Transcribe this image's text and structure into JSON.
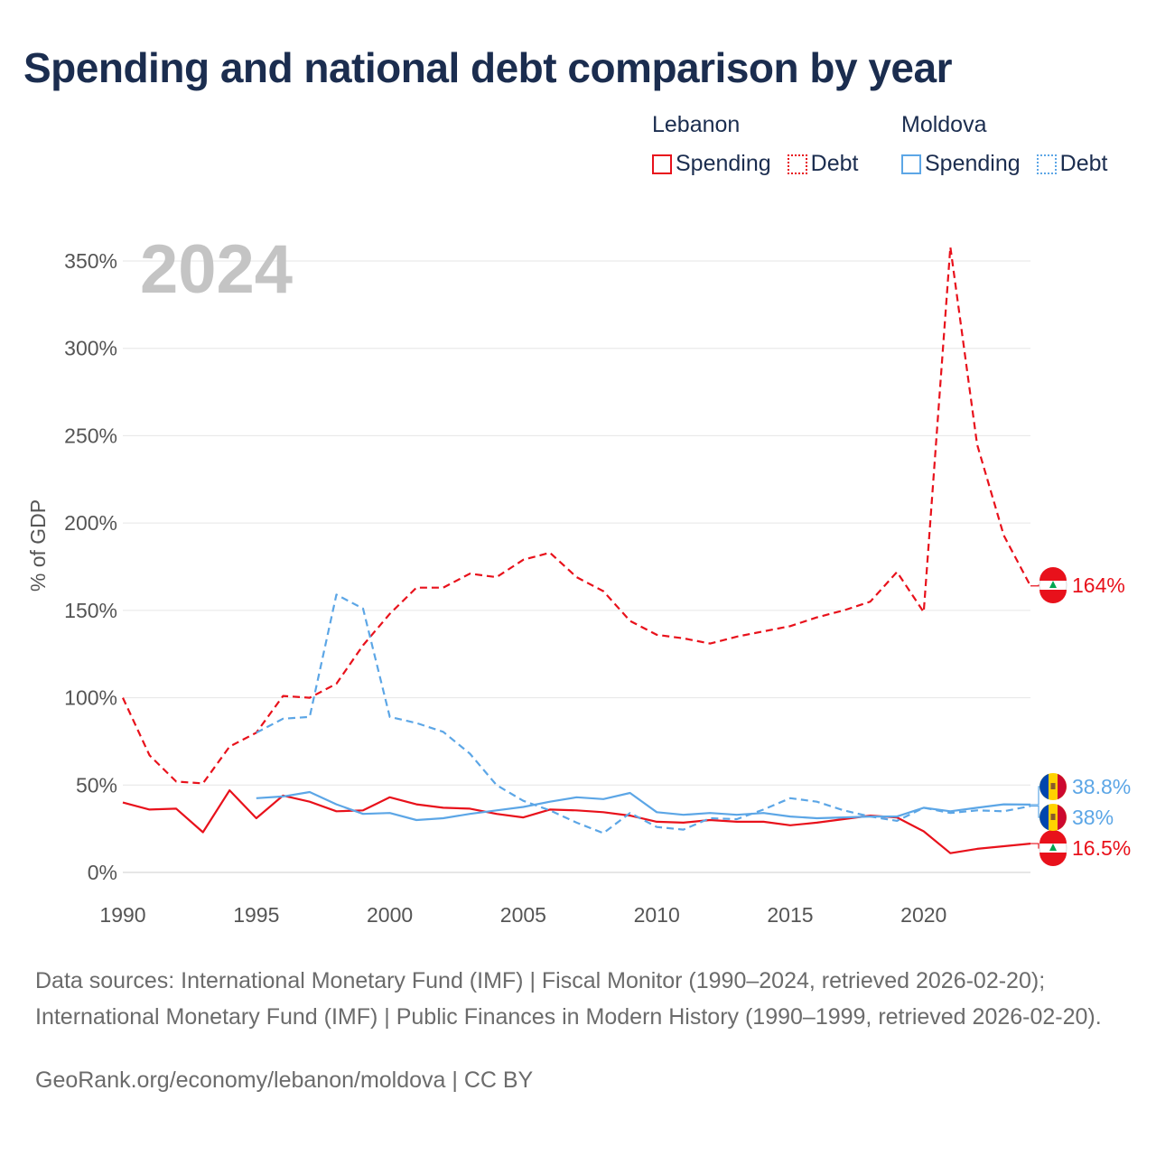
{
  "title": "Spending and national debt comparison by year",
  "legend": {
    "groups": [
      {
        "country": "Lebanon",
        "spending_label": "Spending",
        "debt_label": "Debt",
        "color": "#e8111b"
      },
      {
        "country": "Moldova",
        "spending_label": "Spending",
        "debt_label": "Debt",
        "color": "#5ca6e6"
      }
    ]
  },
  "year_watermark": "2024",
  "footer": {
    "sources": "Data sources: International Monetary Fund (IMF) | Fiscal Monitor (1990–2024, retrieved 2026-02-20); International Monetary Fund (IMF) | Public Finances in Modern History (1990–1999, retrieved 2026-02-20).",
    "credit": "GeoRank.org/economy/lebanon/moldova | CC BY"
  },
  "chart_data": {
    "type": "line",
    "title": "Spending and national debt comparison by year",
    "xlabel": "",
    "ylabel": "% of GDP",
    "xlim": [
      1990,
      2024
    ],
    "ylim": [
      0,
      360
    ],
    "x_ticks": [
      1990,
      1995,
      2000,
      2005,
      2010,
      2015,
      2020
    ],
    "y_ticks": [
      0,
      50,
      100,
      150,
      200,
      250,
      300,
      350
    ],
    "y_tick_labels": [
      "0%",
      "50%",
      "100%",
      "150%",
      "200%",
      "250%",
      "300%",
      "350%"
    ],
    "grid": true,
    "series": [
      {
        "name": "Lebanon Debt",
        "country": "Lebanon",
        "metric": "Debt",
        "style": "dashed",
        "color": "#e8111b",
        "x": [
          1990,
          1991,
          1992,
          1993,
          1994,
          1995,
          1996,
          1997,
          1998,
          1999,
          2000,
          2001,
          2002,
          2003,
          2004,
          2005,
          2006,
          2007,
          2008,
          2009,
          2010,
          2011,
          2012,
          2013,
          2014,
          2015,
          2016,
          2017,
          2018,
          2019,
          2020,
          2021,
          2022,
          2023,
          2024
        ],
        "values": [
          100,
          67,
          52,
          51,
          72,
          80,
          101,
          100,
          108,
          130,
          148,
          163,
          163,
          171,
          169,
          179,
          183,
          169,
          161,
          144,
          136,
          134,
          131,
          135,
          138,
          141,
          146,
          150,
          155,
          172,
          149,
          358,
          245,
          193,
          164
        ],
        "end_label": "164%"
      },
      {
        "name": "Lebanon Spending",
        "country": "Lebanon",
        "metric": "Spending",
        "style": "solid",
        "color": "#e8111b",
        "x": [
          1990,
          1991,
          1992,
          1993,
          1994,
          1995,
          1996,
          1997,
          1998,
          1999,
          2000,
          2001,
          2002,
          2003,
          2004,
          2005,
          2006,
          2007,
          2008,
          2009,
          2010,
          2011,
          2012,
          2013,
          2014,
          2015,
          2016,
          2017,
          2018,
          2019,
          2020,
          2021,
          2022,
          2023,
          2024
        ],
        "values": [
          40,
          36,
          36.5,
          23,
          47,
          31,
          44,
          40.5,
          35,
          35.5,
          43,
          39,
          37,
          36.5,
          33.5,
          31.5,
          36,
          35.5,
          34.5,
          32.5,
          29,
          28.5,
          30,
          29,
          29,
          27,
          28.5,
          30.5,
          32.5,
          31.5,
          23.5,
          11,
          13.5,
          15,
          16.5
        ],
        "end_label": "16.5%"
      },
      {
        "name": "Moldova Debt",
        "country": "Moldova",
        "metric": "Debt",
        "style": "dashed",
        "color": "#5ca6e6",
        "x": [
          1995,
          1996,
          1997,
          1998,
          1999,
          2000,
          2001,
          2002,
          2003,
          2004,
          2005,
          2006,
          2007,
          2008,
          2009,
          2010,
          2011,
          2012,
          2013,
          2014,
          2015,
          2016,
          2017,
          2018,
          2019,
          2020,
          2021,
          2022,
          2023,
          2024
        ],
        "values": [
          80,
          88,
          89,
          159,
          151,
          89,
          85.5,
          80.5,
          68,
          50,
          41,
          35.5,
          28.5,
          22.5,
          34,
          26,
          24.5,
          31,
          30.5,
          36,
          42.5,
          40.5,
          35.5,
          32,
          29.5,
          37,
          34,
          35.5,
          35,
          38
        ],
        "end_label": "38%"
      },
      {
        "name": "Moldova Spending",
        "country": "Moldova",
        "metric": "Spending",
        "style": "solid",
        "color": "#5ca6e6",
        "x": [
          1995,
          1996,
          1997,
          1998,
          1999,
          2000,
          2001,
          2002,
          2003,
          2004,
          2005,
          2006,
          2007,
          2008,
          2009,
          2010,
          2011,
          2012,
          2013,
          2014,
          2015,
          2016,
          2017,
          2018,
          2019,
          2020,
          2021,
          2022,
          2023,
          2024
        ],
        "values": [
          42.5,
          43.5,
          46,
          39,
          33.5,
          34,
          30,
          31,
          33.5,
          35.5,
          37.5,
          40.5,
          43,
          42,
          45.5,
          34.5,
          33,
          34,
          33,
          34,
          32,
          31,
          31.5,
          32,
          32,
          37,
          35,
          37,
          39,
          38.8
        ],
        "end_label": "38.8%"
      }
    ]
  }
}
